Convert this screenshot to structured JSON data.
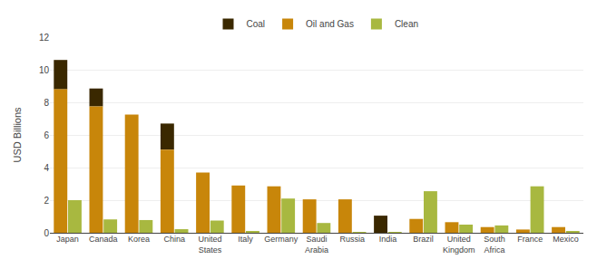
{
  "chart_data": {
    "type": "bar",
    "categories": [
      "Japan",
      "Canada",
      "Korea",
      "China",
      "United\nStates",
      "Italy",
      "Germany",
      "Saudi\nArabia",
      "Russia",
      "India",
      "Brazil",
      "United\nKingdom",
      "South\nAfrica",
      "France",
      "Mexico"
    ],
    "series": [
      {
        "name": "Coal",
        "color": "#3a2800",
        "stacked": true,
        "values": [
          1.8,
          1.1,
          0.0,
          1.6,
          0.0,
          0.0,
          0.0,
          0.0,
          0.0,
          1.05,
          0.0,
          0.0,
          0.0,
          0.0,
          0.0
        ]
      },
      {
        "name": "Oil and Gas",
        "color": "#c8860a",
        "stacked": true,
        "values": [
          8.8,
          7.75,
          7.25,
          5.1,
          3.7,
          2.9,
          2.85,
          2.05,
          2.05,
          0.0,
          0.85,
          0.65,
          0.35,
          0.2,
          0.35
        ]
      },
      {
        "name": "Clean",
        "color": "#a8b840",
        "values": [
          2.0,
          0.82,
          0.78,
          0.22,
          0.75,
          0.08,
          2.1,
          0.6,
          0.05,
          0.05,
          2.55,
          0.5,
          0.45,
          2.85,
          0.1
        ]
      }
    ],
    "ylabel": "USD Billions",
    "ylim": [
      0,
      12
    ],
    "yticks": [
      0,
      2,
      4,
      6,
      8,
      10,
      12
    ],
    "grid": true
  }
}
